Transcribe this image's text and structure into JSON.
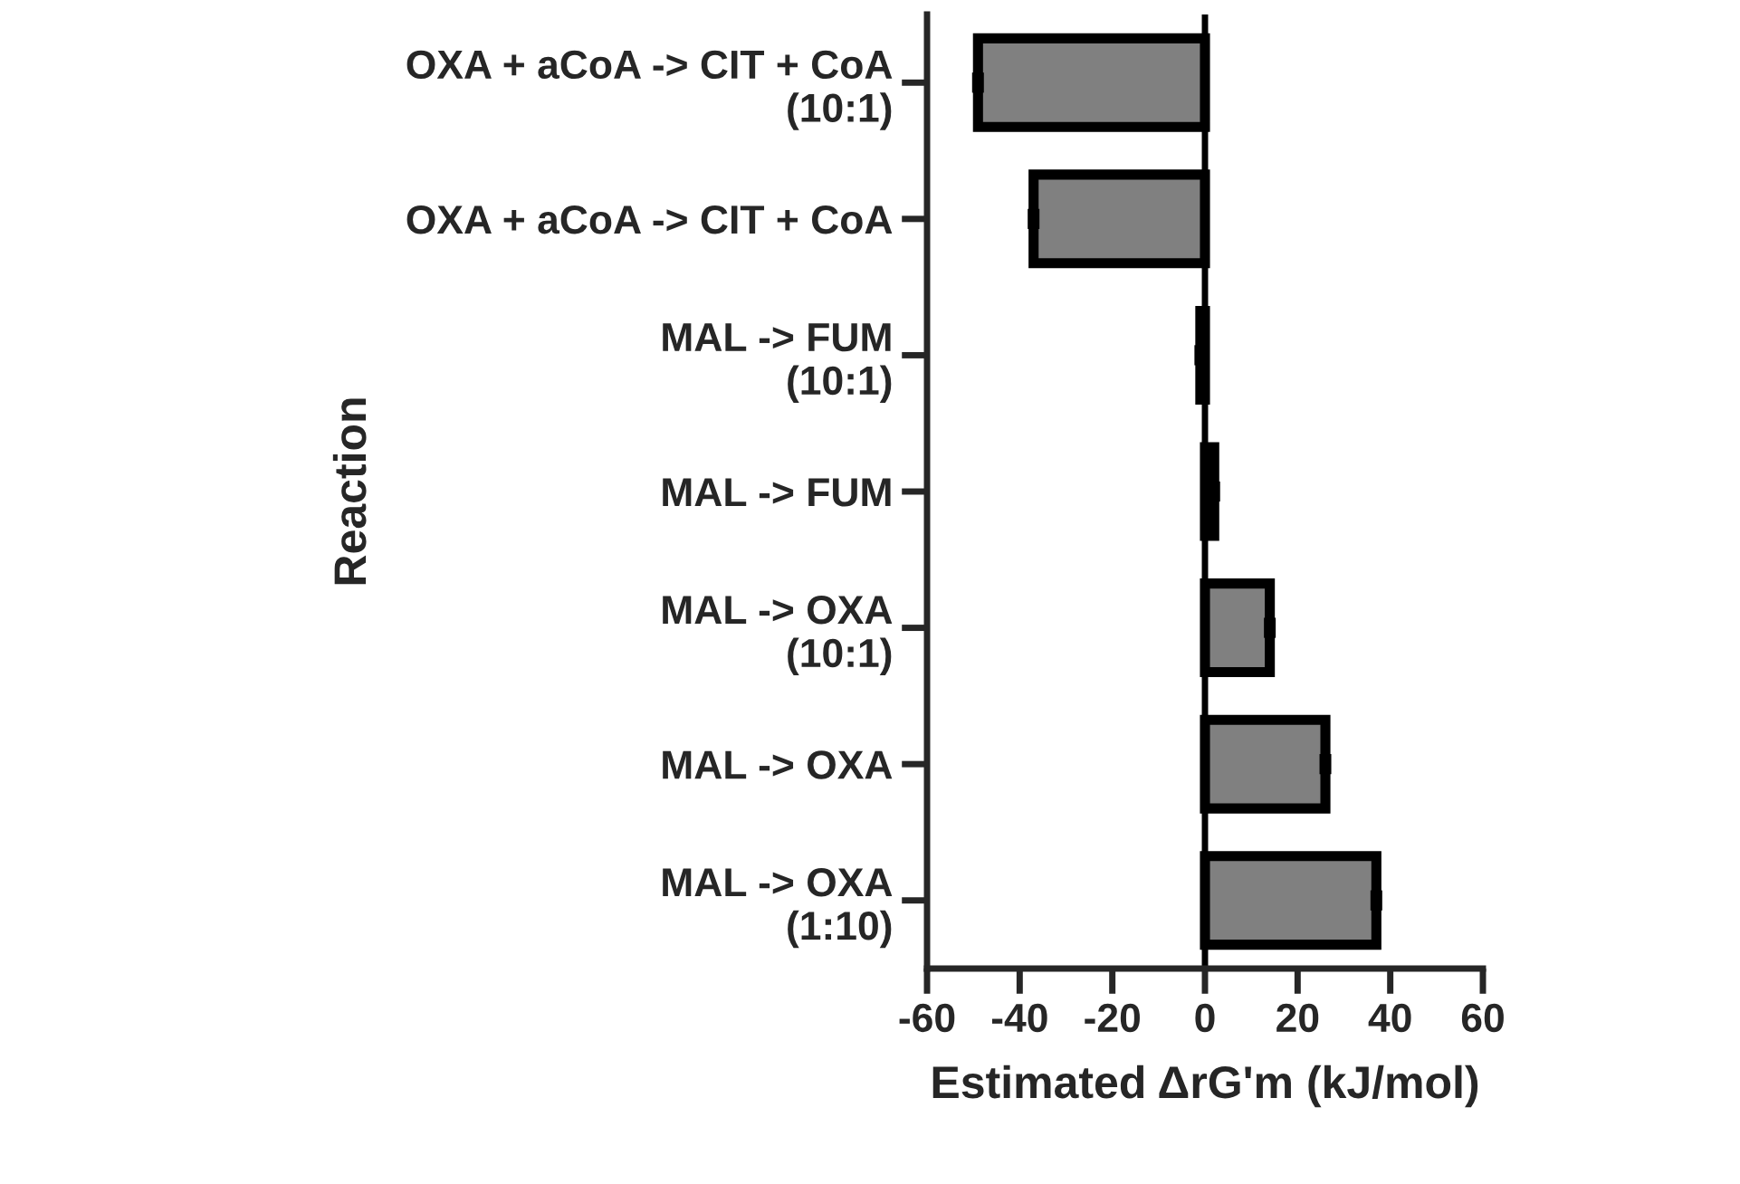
{
  "chart_data": {
    "type": "bar",
    "orientation": "horizontal",
    "categories": [
      "OXA + aCoA -> CIT + CoA\n(10:1)",
      "OXA + aCoA -> CIT + CoA",
      "MAL -> FUM\n(10:1)",
      "MAL -> FUM",
      "MAL -> OXA\n(10:1)",
      "MAL -> OXA",
      "MAL -> OXA\n(1:10)"
    ],
    "values": [
      -49,
      -37,
      -1,
      2,
      14,
      26,
      37
    ],
    "errors": [
      1,
      1,
      1,
      1,
      1,
      1,
      1
    ],
    "color": "#808080",
    "xlabel": "Estimated ΔrG'm (kJ/mol)",
    "ylabel": "Reaction",
    "xlim": [
      -60,
      60
    ],
    "xticks": [
      -60,
      -40,
      -20,
      0,
      20,
      40,
      60
    ],
    "ref_lines": [
      {
        "axis": "x",
        "value": 0,
        "color": "#000000"
      }
    ],
    "grid": false,
    "legend": false
  }
}
